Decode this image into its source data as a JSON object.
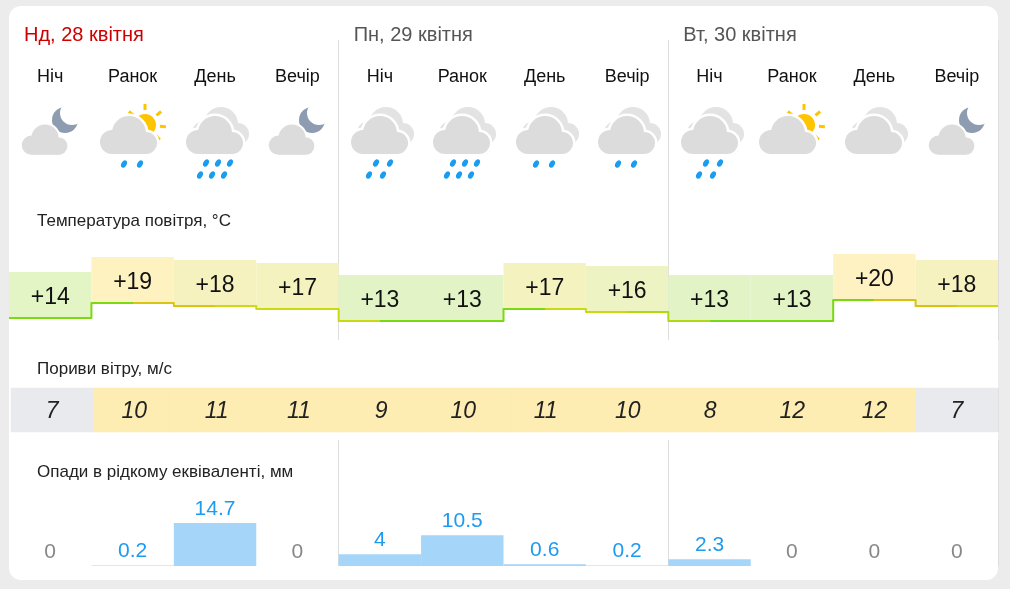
{
  "chart_data": [
    {
      "type": "step",
      "title": "Температура повітря, °C",
      "annotations": [
        "Нд, 28 квітня",
        "Пн, 29 квітня",
        "Вт, 30 квітня"
      ],
      "categories": [
        "Ніч",
        "Ранок",
        "День",
        "Вечір",
        "Ніч",
        "Ранок",
        "День",
        "Вечір",
        "Ніч",
        "Ранок",
        "День",
        "Вечір"
      ],
      "values": [
        14,
        19,
        18,
        17,
        13,
        13,
        17,
        16,
        13,
        13,
        20,
        18
      ],
      "value_labels": [
        "+14",
        "+19",
        "+18",
        "+17",
        "+13",
        "+13",
        "+17",
        "+16",
        "+13",
        "+13",
        "+20",
        "+18"
      ],
      "colors": [
        "#e3f4c5",
        "#fef2c0",
        "#f5f2c0",
        "#f4f3c0",
        "#e2f4c6",
        "#e2f4c6",
        "#f4f3c0",
        "#eef3c3",
        "#e2f4c6",
        "#e2f4c6",
        "#fff2c2",
        "#f5f2c0"
      ],
      "grid": "x",
      "tick_labels": "x"
    },
    {
      "type": "heatmap",
      "title": "Пориви вітру, м/с",
      "categories": [
        null,
        null,
        null,
        null,
        null,
        null,
        null,
        null,
        null,
        null,
        null,
        null
      ],
      "y_categories": [
        null
      ],
      "cells": [
        [
          7,
          10,
          11,
          11,
          9,
          10,
          11,
          10,
          8,
          12,
          12,
          7
        ]
      ],
      "colors": [
        "#e9eaed",
        "#fdedb3",
        "#fdedb3",
        "#fdedb3",
        "#fdedb3",
        "#fdedb3",
        "#fdedb3",
        "#fdedb3",
        "#fdedb3",
        "#fdedb3",
        "#fdedb3",
        "#e9eaed"
      ],
      "data_labels": true,
      "grid": "x"
    },
    {
      "type": "bar",
      "title": "Опади в рідкому еквіваленті, мм",
      "categories": [
        null,
        null,
        null,
        null,
        null,
        null,
        null,
        null,
        null,
        null,
        null,
        null
      ],
      "values": [
        0,
        0.2,
        14.7,
        0,
        4,
        10.5,
        0.6,
        0.2,
        2.3,
        0,
        0,
        0
      ],
      "color": "#a6d5fa",
      "data_labels": true,
      "grid": "x"
    }
  ]
}
